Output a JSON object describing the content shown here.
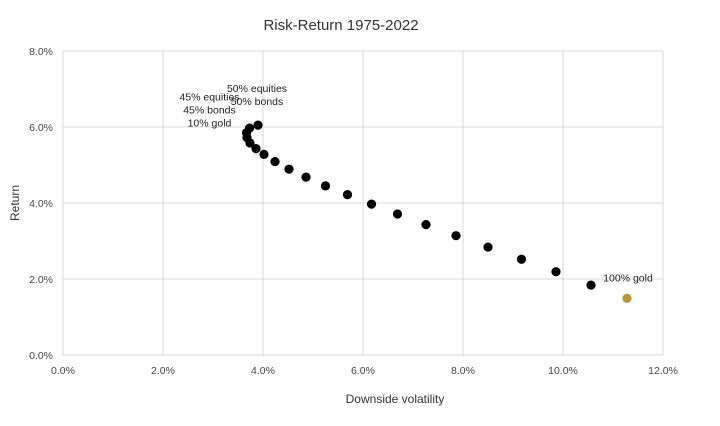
{
  "chart_data": {
    "type": "scatter",
    "title": "Risk-Return 1975-2022",
    "xlabel": "Downside volatility",
    "ylabel": "Return",
    "xlim": [
      0,
      12
    ],
    "ylim": [
      0,
      8
    ],
    "x_ticks": [
      "0.0%",
      "2.0%",
      "4.0%",
      "6.0%",
      "8.0%",
      "10.0%",
      "12.0%"
    ],
    "y_ticks": [
      "0.0%",
      "2.0%",
      "4.0%",
      "6.0%",
      "8.0%"
    ],
    "grid": "vertical and horizontal",
    "legend": "none",
    "colors": {
      "portfolio": "#000000",
      "gold": "#b8963e",
      "grid": "#d9d9d9"
    },
    "series": [
      {
        "points": [
          {
            "x": 3.9,
            "y": 6.05
          },
          {
            "x": 3.73,
            "y": 5.97
          },
          {
            "x": 3.67,
            "y": 5.85
          },
          {
            "x": 3.68,
            "y": 5.72
          },
          {
            "x": 3.74,
            "y": 5.58
          },
          {
            "x": 3.86,
            "y": 5.43
          },
          {
            "x": 4.02,
            "y": 5.28
          },
          {
            "x": 4.24,
            "y": 5.09
          },
          {
            "x": 4.52,
            "y": 4.89
          },
          {
            "x": 4.86,
            "y": 4.68
          },
          {
            "x": 5.25,
            "y": 4.45
          },
          {
            "x": 5.69,
            "y": 4.22
          },
          {
            "x": 6.17,
            "y": 3.97
          },
          {
            "x": 6.69,
            "y": 3.71
          },
          {
            "x": 7.26,
            "y": 3.43
          },
          {
            "x": 7.86,
            "y": 3.14
          },
          {
            "x": 8.5,
            "y": 2.84
          },
          {
            "x": 9.17,
            "y": 2.52
          },
          {
            "x": 9.86,
            "y": 2.19
          },
          {
            "x": 10.56,
            "y": 1.84
          }
        ]
      },
      {
        "points": [
          {
            "x": 11.28,
            "y": 1.49
          }
        ]
      }
    ],
    "annotations": [
      {
        "lines": [
          "50% equities",
          "50% bonds"
        ],
        "x": 3.9,
        "y": 6.05
      },
      {
        "lines": [
          "45% equities",
          "45% bonds",
          "10% gold"
        ],
        "x": 3.67,
        "y": 5.85
      },
      {
        "lines": [
          "100% gold"
        ],
        "x": 11.28,
        "y": 1.49
      }
    ]
  }
}
